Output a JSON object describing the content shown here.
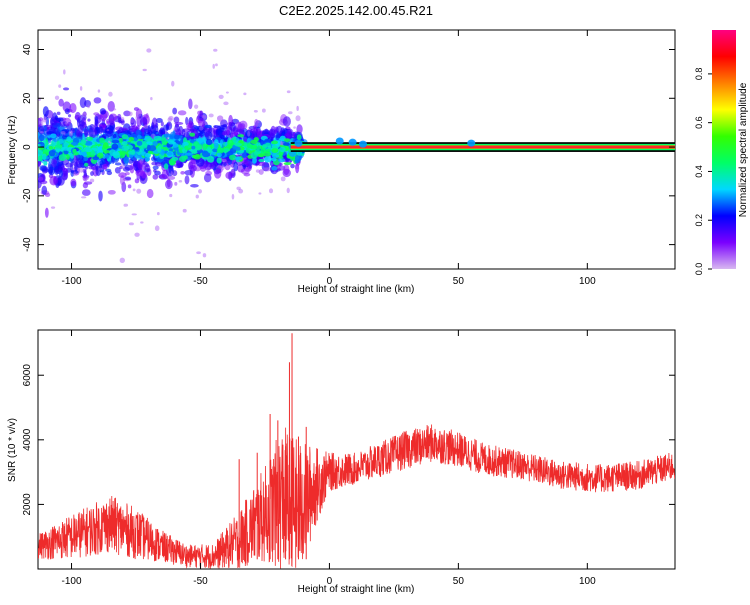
{
  "title": "C2E2.2025.142.00.45.R21",
  "chart_data": [
    {
      "type": "heatmap",
      "title": "C2E2.2025.142.00.45.R21",
      "xlabel": "Height of straight line (km)",
      "ylabel": "Frequency (Hz)",
      "xlim": [
        -113,
        134
      ],
      "ylim": [
        -50,
        48
      ],
      "x_ticks": [
        -100,
        -50,
        0,
        50,
        100
      ],
      "y_ticks": [
        -40,
        -20,
        0,
        20,
        40
      ],
      "grid": false,
      "colorbar": {
        "label": "Normalized spectral amplitude",
        "range": [
          0.0,
          0.98
        ],
        "ticks": [
          0.0,
          0.2,
          0.4,
          0.6,
          0.8
        ],
        "colormap": [
          "#d8b8f0",
          "#7a00ff",
          "#0000ff",
          "#00d8ff",
          "#00ff66",
          "#33ff00",
          "#ffff00",
          "#ff8000",
          "#ff0000",
          "#ff0080"
        ]
      },
      "band": {
        "x_start": -15,
        "x_end": 134,
        "frequency_hz": 0,
        "half_width_hz": 2,
        "amplitude": 0.95
      },
      "scatter_region": {
        "x_start": -113,
        "x_end": -10,
        "frequency_spread_hz": 15
      }
    },
    {
      "type": "line",
      "xlabel": "Height of straight line (km)",
      "ylabel": "SNR (10 * v/v)",
      "xlim": [
        -113,
        134
      ],
      "ylim": [
        0,
        7400
      ],
      "x_ticks": [
        -100,
        -50,
        0,
        50,
        100
      ],
      "y_ticks": [
        2000,
        4000,
        6000
      ],
      "grid": false,
      "series": [
        {
          "color": "#ee2b2b",
          "envelope": [
            {
              "x": -113,
              "mean": 700,
              "spread": 400
            },
            {
              "x": -100,
              "mean": 1000,
              "spread": 700
            },
            {
              "x": -85,
              "mean": 1400,
              "spread": 900
            },
            {
              "x": -75,
              "mean": 1100,
              "spread": 800
            },
            {
              "x": -65,
              "mean": 700,
              "spread": 500
            },
            {
              "x": -55,
              "mean": 400,
              "spread": 350
            },
            {
              "x": -45,
              "mean": 400,
              "spread": 400
            },
            {
              "x": -35,
              "mean": 900,
              "spread": 900
            },
            {
              "x": -25,
              "mean": 1700,
              "spread": 1500
            },
            {
              "x": -18,
              "mean": 2200,
              "spread": 2300
            },
            {
              "x": -12,
              "mean": 1800,
              "spread": 2200
            },
            {
              "x": -5,
              "mean": 2600,
              "spread": 1200
            },
            {
              "x": 0,
              "mean": 3000,
              "spread": 600
            },
            {
              "x": 10,
              "mean": 3100,
              "spread": 500
            },
            {
              "x": 20,
              "mean": 3400,
              "spread": 550
            },
            {
              "x": 30,
              "mean": 3700,
              "spread": 600
            },
            {
              "x": 40,
              "mean": 3900,
              "spread": 600
            },
            {
              "x": 50,
              "mean": 3700,
              "spread": 550
            },
            {
              "x": 60,
              "mean": 3400,
              "spread": 500
            },
            {
              "x": 75,
              "mean": 3200,
              "spread": 450
            },
            {
              "x": 90,
              "mean": 2900,
              "spread": 450
            },
            {
              "x": 105,
              "mean": 2800,
              "spread": 450
            },
            {
              "x": 120,
              "mean": 2900,
              "spread": 450
            },
            {
              "x": 134,
              "mean": 3200,
              "spread": 450
            }
          ],
          "spikes": [
            {
              "x": -14.5,
              "y": 7300
            },
            {
              "x": -15.5,
              "y": 6400
            },
            {
              "x": -23,
              "y": 4800
            },
            {
              "x": -20,
              "y": 4600
            },
            {
              "x": -17,
              "y": 3800
            },
            {
              "x": -28,
              "y": 3600
            },
            {
              "x": -35,
              "y": 3400
            },
            {
              "x": -9,
              "y": 4400
            },
            {
              "x": -12,
              "y": 4100
            }
          ]
        }
      ]
    }
  ]
}
